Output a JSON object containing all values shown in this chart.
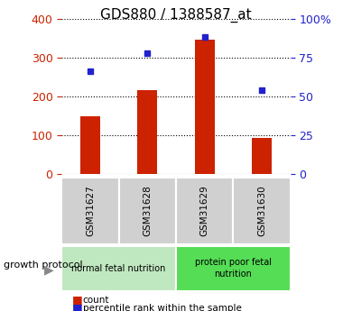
{
  "title": "GDS880 / 1388587_at",
  "samples": [
    "GSM31627",
    "GSM31628",
    "GSM31629",
    "GSM31630"
  ],
  "counts": [
    150,
    215,
    345,
    93
  ],
  "percentiles": [
    66,
    78,
    88,
    54
  ],
  "bar_color": "#cc2200",
  "dot_color": "#2222cc",
  "left_ylim": [
    0,
    400
  ],
  "right_ylim": [
    0,
    100
  ],
  "left_yticks": [
    0,
    100,
    200,
    300,
    400
  ],
  "right_yticks": [
    0,
    25,
    50,
    75,
    100
  ],
  "right_yticklabels": [
    "0",
    "25",
    "50",
    "75",
    "100%"
  ],
  "ylabel_left_color": "#cc2200",
  "ylabel_right_color": "#2222cc",
  "group_label": "growth protocol",
  "legend_count": "count",
  "legend_percentile": "percentile rank within the sample",
  "group1_label": "normal fetal nutrition",
  "group2_label": "protein poor fetal\nnutrition",
  "group1_color": "#c0e8c0",
  "group2_color": "#55dd55",
  "sample_box_color": "#d0d0d0"
}
